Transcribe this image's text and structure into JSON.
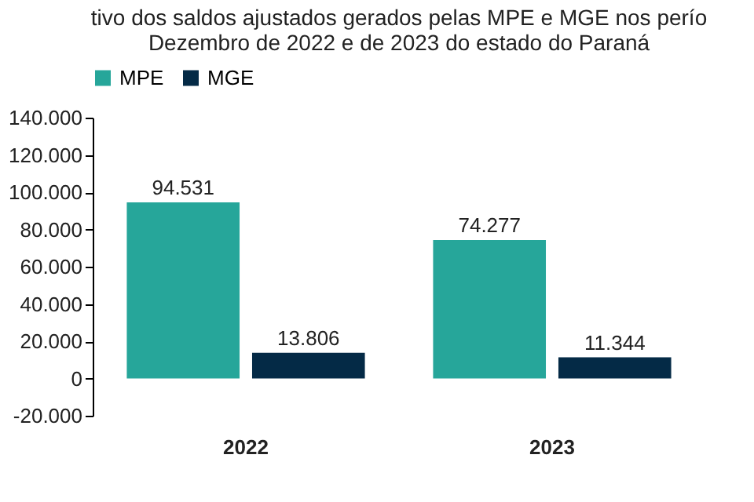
{
  "chart_data": {
    "type": "bar",
    "title": [
      "tivo dos saldos ajustados gerados pelas MPE e MGE nos perío",
      "Dezembro de 2022 e de 2023 do estado do Paraná"
    ],
    "categories": [
      "2022",
      "2023"
    ],
    "series": [
      {
        "name": "MPE",
        "color": "#26a69a",
        "values": [
          94531,
          74277
        ],
        "value_labels": [
          "94.531",
          "74.277"
        ]
      },
      {
        "name": "MGE",
        "color": "#042a46",
        "values": [
          13806,
          11344
        ],
        "value_labels": [
          "13.806",
          "11.344"
        ]
      }
    ],
    "ylim": [
      -20000,
      140000
    ],
    "yticks": [
      {
        "value": -20000,
        "label": "-20.000"
      },
      {
        "value": 0,
        "label": "0"
      },
      {
        "value": 20000,
        "label": "20.000"
      },
      {
        "value": 40000,
        "label": "40.000"
      },
      {
        "value": 60000,
        "label": "60.000"
      },
      {
        "value": 80000,
        "label": "80.000"
      },
      {
        "value": 100000,
        "label": "100.000"
      },
      {
        "value": 120000,
        "label": "120.000"
      },
      {
        "value": 140000,
        "label": "140.000"
      }
    ],
    "grid": false,
    "legend": "top"
  }
}
